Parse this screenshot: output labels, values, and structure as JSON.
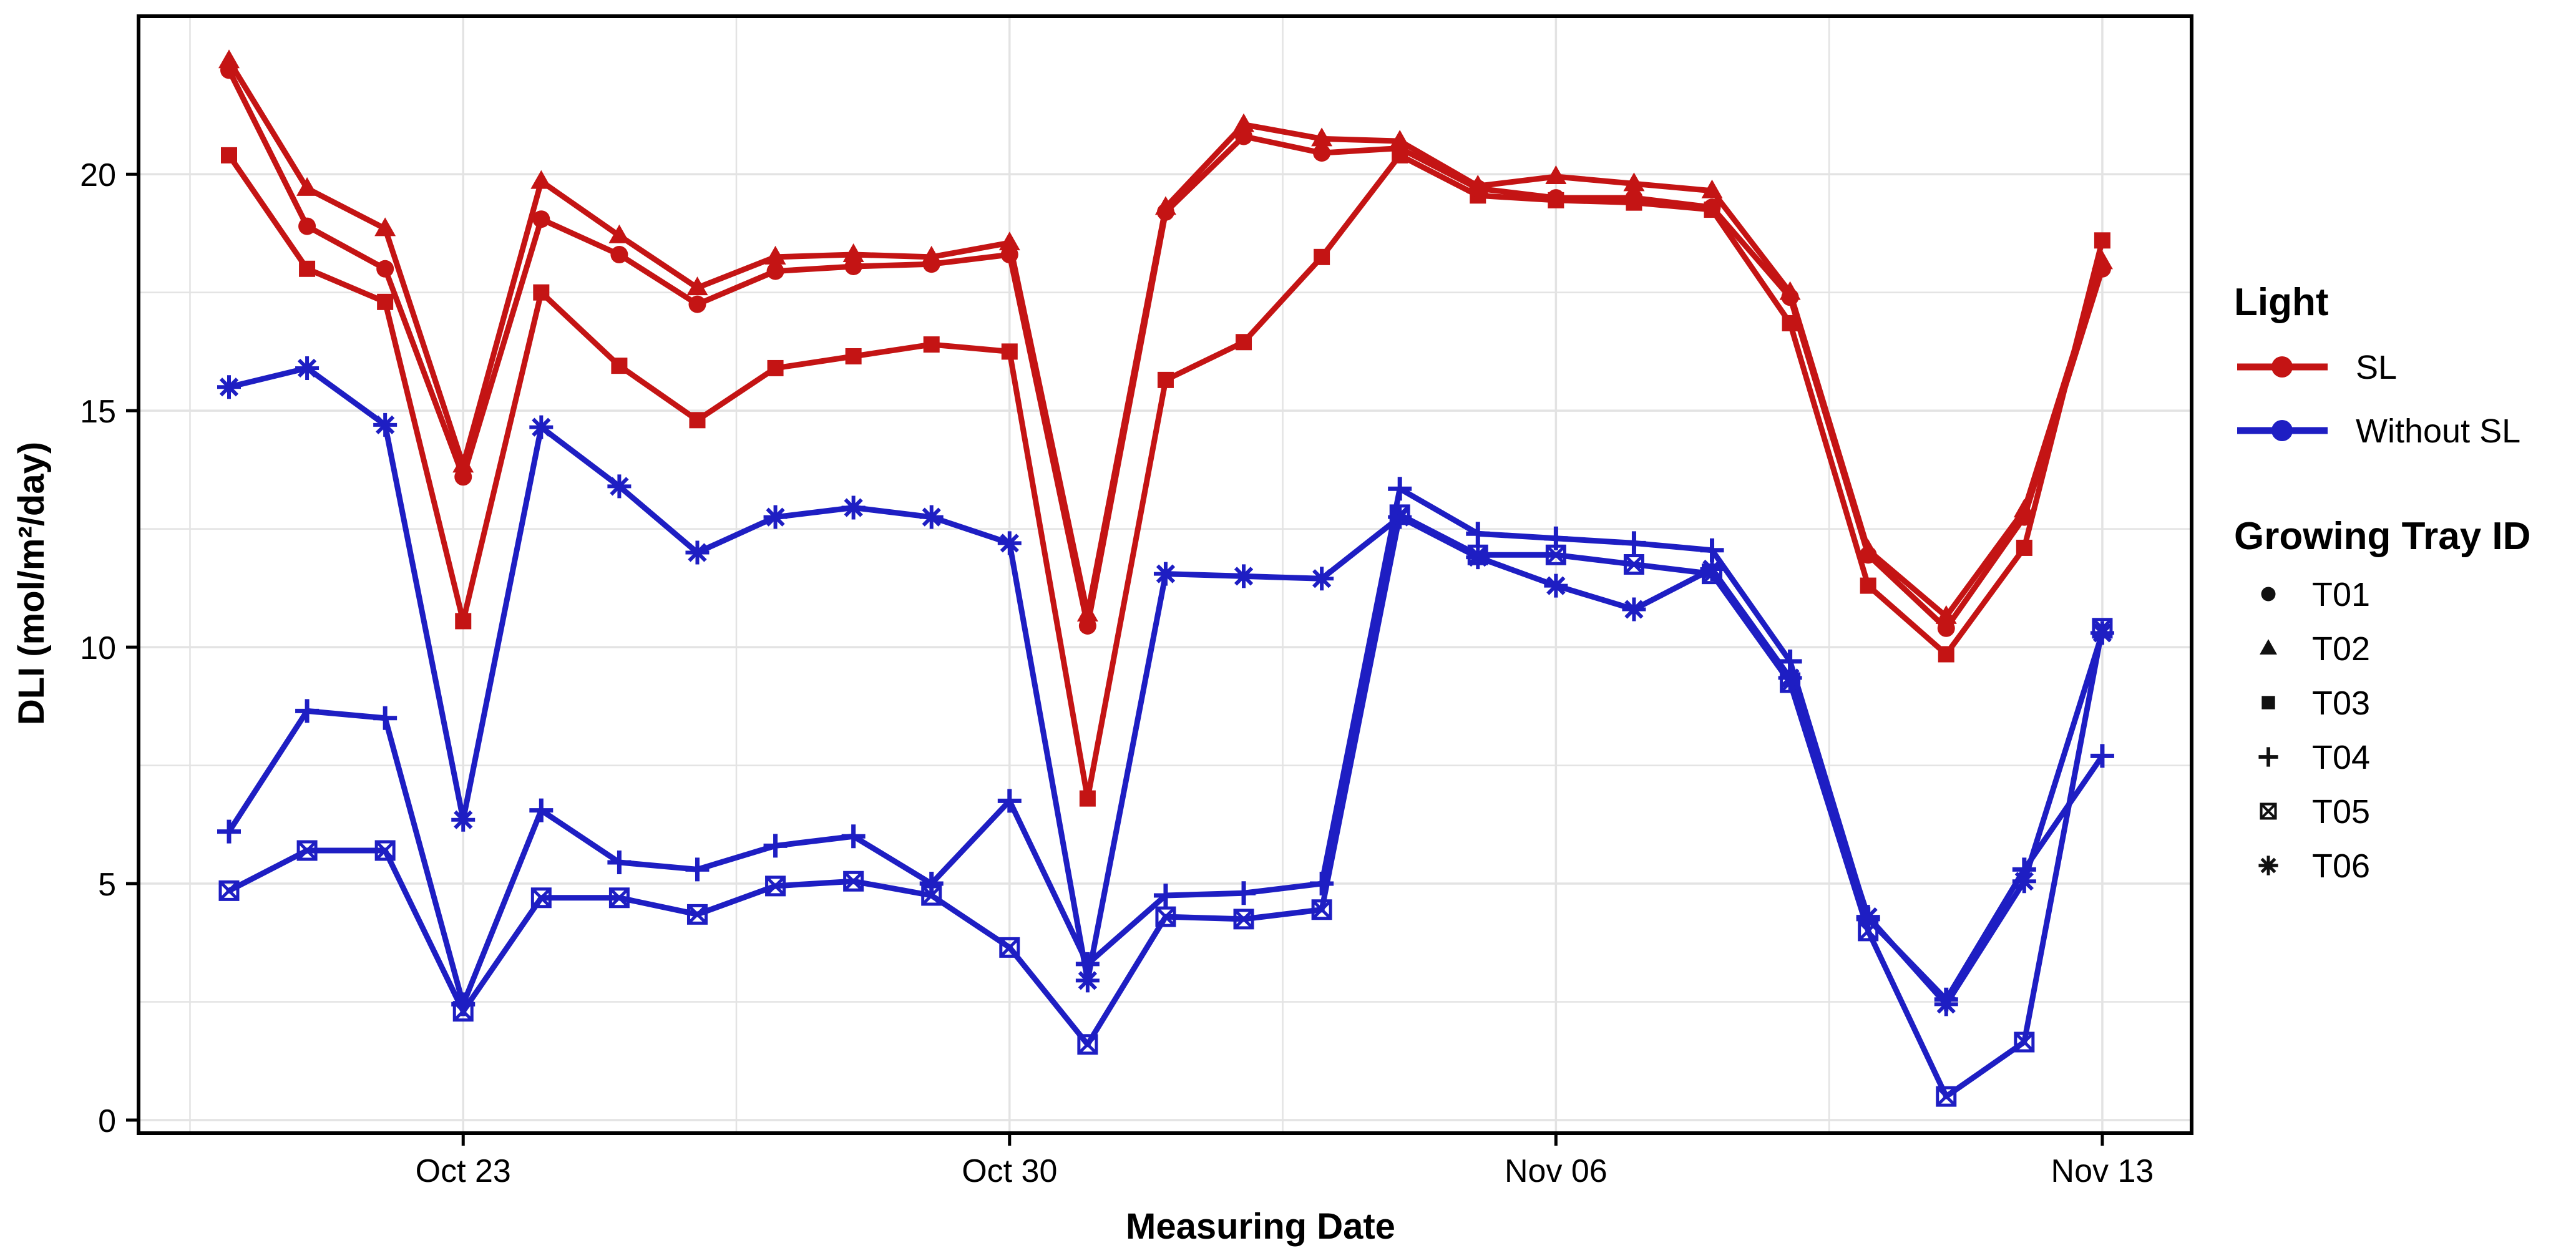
{
  "chart_data": {
    "type": "line",
    "title": "",
    "xlabel": "Measuring Date",
    "ylabel": "DLI (mol/m²/day)",
    "ylim": [
      0,
      20
    ],
    "y_major_ticks": [
      0,
      5,
      10,
      15,
      20
    ],
    "y_minor_ticks": [
      2.5,
      7.5,
      12.5,
      17.5
    ],
    "x_tick_labels": [
      "Oct 23",
      "Oct 30",
      "Nov 06",
      "Nov 13"
    ],
    "x_tick_indices": [
      3,
      10,
      17,
      24
    ],
    "x_minor_indices": [
      -0.5,
      6.5,
      13.5,
      20.5
    ],
    "grid": true,
    "dates": [
      "Oct 20",
      "Oct 21",
      "Oct 22",
      "Oct 23",
      "Oct 24",
      "Oct 25",
      "Oct 26",
      "Oct 27",
      "Oct 28",
      "Oct 29",
      "Oct 30",
      "Oct 31",
      "Nov 01",
      "Nov 02",
      "Nov 03",
      "Nov 04",
      "Nov 05",
      "Nov 06",
      "Nov 07",
      "Nov 08",
      "Nov 09",
      "Nov 10",
      "Nov 11",
      "Nov 12",
      "Nov 13"
    ],
    "series": [
      {
        "name": "T06",
        "light": "Without SL",
        "marker": "asterisk",
        "values": [
          15.5,
          15.9,
          14.7,
          6.35,
          14.65,
          13.4,
          12.0,
          12.75,
          12.95,
          12.75,
          12.2,
          2.95,
          11.55,
          11.5,
          11.45,
          12.75,
          11.9,
          11.3,
          10.8,
          11.65,
          9.35,
          4.3,
          2.45,
          5.05,
          10.3
        ]
      },
      {
        "name": "T05",
        "light": "Without SL",
        "marker": "square-x",
        "values": [
          4.85,
          5.7,
          5.7,
          2.3,
          4.7,
          4.7,
          4.35,
          4.95,
          5.05,
          4.75,
          3.65,
          1.6,
          4.3,
          4.25,
          4.45,
          12.8,
          11.95,
          11.95,
          11.75,
          11.55,
          9.25,
          4.0,
          0.5,
          1.65,
          10.4
        ]
      },
      {
        "name": "T04",
        "light": "Without SL",
        "marker": "plus",
        "values": [
          6.1,
          8.65,
          8.5,
          2.45,
          6.55,
          5.45,
          5.3,
          5.8,
          6.0,
          5.0,
          6.75,
          3.3,
          4.75,
          4.8,
          5.0,
          13.35,
          12.4,
          12.3,
          12.2,
          12.05,
          9.7,
          4.25,
          2.55,
          5.3,
          7.7
        ]
      },
      {
        "name": "T03",
        "light": "SL",
        "marker": "square",
        "values": [
          20.4,
          18.0,
          17.3,
          10.55,
          17.5,
          15.95,
          14.8,
          15.9,
          16.15,
          16.4,
          16.25,
          6.8,
          15.65,
          16.45,
          18.25,
          20.4,
          19.55,
          19.45,
          19.4,
          19.25,
          16.85,
          11.3,
          9.85,
          12.1,
          18.6
        ]
      },
      {
        "name": "T01",
        "light": "SL",
        "marker": "circle",
        "values": [
          22.2,
          18.9,
          18.0,
          13.6,
          19.05,
          18.3,
          17.25,
          17.95,
          18.05,
          18.1,
          18.3,
          10.45,
          19.2,
          20.8,
          20.45,
          20.55,
          19.7,
          19.5,
          19.5,
          19.3,
          17.4,
          11.95,
          10.4,
          12.75,
          18.0
        ]
      },
      {
        "name": "T02",
        "light": "SL",
        "marker": "triangle",
        "values": [
          22.4,
          19.7,
          18.85,
          13.85,
          19.85,
          18.7,
          17.6,
          18.25,
          18.3,
          18.25,
          18.55,
          10.7,
          19.3,
          21.05,
          20.75,
          20.7,
          19.75,
          19.95,
          19.8,
          19.65,
          17.5,
          12.05,
          10.65,
          12.9,
          18.15
        ]
      }
    ],
    "legend": {
      "light": {
        "title": "Light",
        "items": [
          {
            "label": "SL",
            "color": "#C41414"
          },
          {
            "label": "Without SL",
            "color": "#1E1EC3"
          }
        ]
      },
      "tray": {
        "title": "Growing Tray ID",
        "items": [
          {
            "label": "T01",
            "marker": "circle"
          },
          {
            "label": "T02",
            "marker": "triangle"
          },
          {
            "label": "T03",
            "marker": "square"
          },
          {
            "label": "T04",
            "marker": "plus"
          },
          {
            "label": "T05",
            "marker": "square-x"
          },
          {
            "label": "T06",
            "marker": "asterisk"
          }
        ]
      }
    },
    "colors": {
      "sl": "#C41414",
      "without_sl": "#1E1EC3",
      "grid": "#E3E3E3",
      "panel_border": "#000000",
      "text": "#000000",
      "background": "#FFFFFF"
    }
  }
}
